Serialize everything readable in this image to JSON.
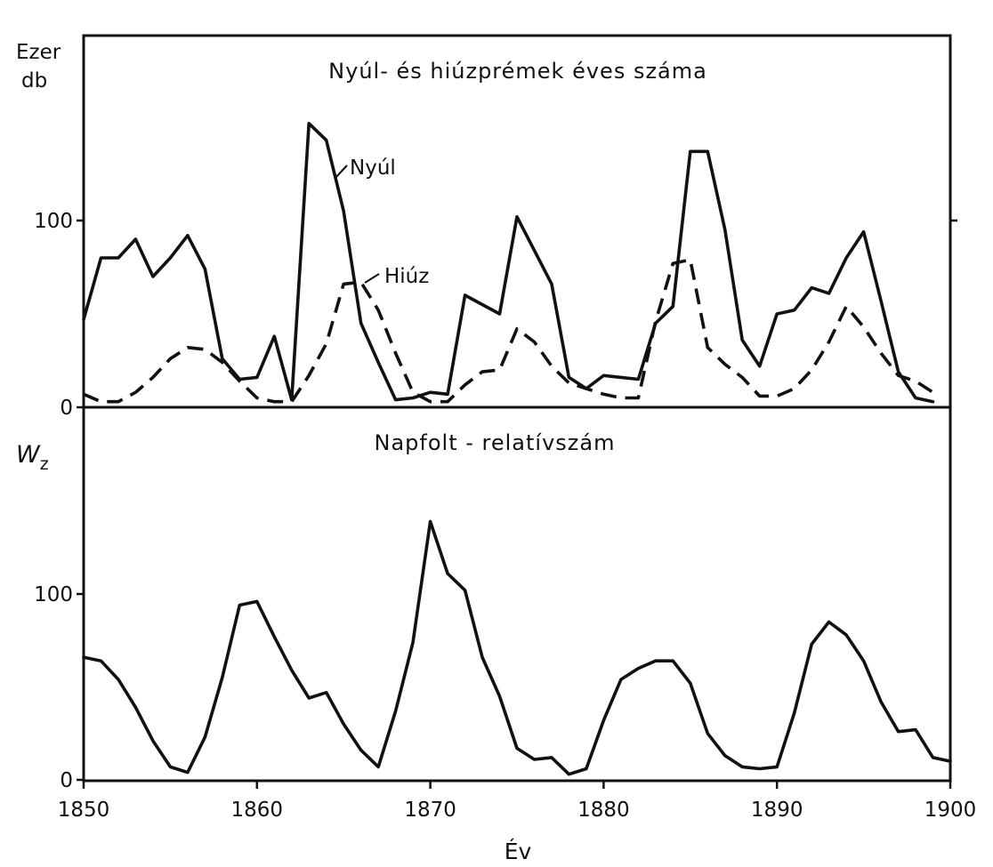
{
  "chart_data": [
    {
      "type": "line",
      "title": "Nyúl- és hiúzprémek éves száma",
      "ylabel_lines": [
        "Ezer",
        "db"
      ],
      "xlabel": "",
      "xlim": [
        1850,
        1900
      ],
      "ylim": [
        0,
        150
      ],
      "yticks": [
        0,
        100
      ],
      "series": [
        {
          "name": "Nyúl",
          "style": "solid",
          "points": [
            [
              1850,
              47
            ],
            [
              1851,
              80
            ],
            [
              1852,
              80
            ],
            [
              1853,
              90
            ],
            [
              1854,
              70
            ],
            [
              1855,
              80
            ],
            [
              1856,
              92
            ],
            [
              1857,
              74
            ],
            [
              1858,
              26
            ],
            [
              1859,
              15
            ],
            [
              1860,
              16
            ],
            [
              1861,
              38
            ],
            [
              1862,
              4
            ],
            [
              1863,
              152
            ],
            [
              1864,
              143
            ],
            [
              1865,
              105
            ],
            [
              1866,
              45
            ],
            [
              1867,
              24
            ],
            [
              1868,
              4
            ],
            [
              1869,
              5
            ],
            [
              1870,
              8
            ],
            [
              1871,
              7
            ],
            [
              1872,
              60
            ],
            [
              1873,
              55
            ],
            [
              1874,
              50
            ],
            [
              1875,
              102
            ],
            [
              1876,
              84
            ],
            [
              1877,
              66
            ],
            [
              1878,
              16
            ],
            [
              1879,
              10
            ],
            [
              1880,
              17
            ],
            [
              1881,
              16
            ],
            [
              1882,
              15
            ],
            [
              1883,
              45
            ],
            [
              1884,
              54
            ],
            [
              1885,
              137
            ],
            [
              1886,
              137
            ],
            [
              1887,
              95
            ],
            [
              1888,
              36
            ],
            [
              1889,
              22
            ],
            [
              1890,
              50
            ],
            [
              1891,
              52
            ],
            [
              1892,
              64
            ],
            [
              1893,
              61
            ],
            [
              1894,
              80
            ],
            [
              1895,
              94
            ],
            [
              1896,
              57
            ],
            [
              1897,
              19
            ],
            [
              1898,
              5
            ],
            [
              1899,
              3
            ]
          ]
        },
        {
          "name": "Hiúz",
          "style": "dashed",
          "points": [
            [
              1850,
              7
            ],
            [
              1851,
              3
            ],
            [
              1852,
              3
            ],
            [
              1853,
              8
            ],
            [
              1854,
              16
            ],
            [
              1855,
              26
            ],
            [
              1856,
              32
            ],
            [
              1857,
              31
            ],
            [
              1858,
              24
            ],
            [
              1859,
              14
            ],
            [
              1860,
              5
            ],
            [
              1861,
              3
            ],
            [
              1862,
              3
            ],
            [
              1863,
              17
            ],
            [
              1864,
              34
            ],
            [
              1865,
              66
            ],
            [
              1866,
              67
            ],
            [
              1867,
              52
            ],
            [
              1868,
              29
            ],
            [
              1869,
              8
            ],
            [
              1870,
              3
            ],
            [
              1871,
              3
            ],
            [
              1872,
              12
            ],
            [
              1873,
              19
            ],
            [
              1874,
              20
            ],
            [
              1875,
              42
            ],
            [
              1876,
              35
            ],
            [
              1877,
              22
            ],
            [
              1878,
              13
            ],
            [
              1879,
              10
            ],
            [
              1880,
              7
            ],
            [
              1881,
              5
            ],
            [
              1882,
              5
            ],
            [
              1883,
              46
            ],
            [
              1884,
              77
            ],
            [
              1885,
              79
            ],
            [
              1886,
              32
            ],
            [
              1887,
              23
            ],
            [
              1888,
              16
            ],
            [
              1889,
              6
            ],
            [
              1890,
              6
            ],
            [
              1891,
              10
            ],
            [
              1892,
              20
            ],
            [
              1893,
              35
            ],
            [
              1894,
              54
            ],
            [
              1895,
              43
            ],
            [
              1896,
              29
            ],
            [
              1897,
              17
            ],
            [
              1898,
              14
            ],
            [
              1899,
              8
            ]
          ]
        }
      ]
    },
    {
      "type": "line",
      "title": "Napfolt - relatívszám",
      "ylabel_main": "W",
      "ylabel_sub": "z",
      "xlabel": "Év",
      "xlim": [
        1850,
        1900
      ],
      "ylim": [
        0,
        150
      ],
      "yticks": [
        0,
        100
      ],
      "xticks": [
        1850,
        1860,
        1870,
        1880,
        1890,
        1900
      ],
      "series": [
        {
          "name": "",
          "style": "solid",
          "points": [
            [
              1850,
              66
            ],
            [
              1851,
              64
            ],
            [
              1852,
              54
            ],
            [
              1853,
              39
            ],
            [
              1854,
              21
            ],
            [
              1855,
              7
            ],
            [
              1856,
              4
            ],
            [
              1857,
              23
            ],
            [
              1858,
              55
            ],
            [
              1859,
              94
            ],
            [
              1860,
              96
            ],
            [
              1861,
              77
            ],
            [
              1862,
              59
            ],
            [
              1863,
              44
            ],
            [
              1864,
              47
            ],
            [
              1865,
              30
            ],
            [
              1866,
              16
            ],
            [
              1867,
              7
            ],
            [
              1868,
              37
            ],
            [
              1869,
              74
            ],
            [
              1870,
              139
            ],
            [
              1871,
              111
            ],
            [
              1872,
              102
            ],
            [
              1873,
              66
            ],
            [
              1874,
              45
            ],
            [
              1875,
              17
            ],
            [
              1876,
              11
            ],
            [
              1877,
              12
            ],
            [
              1878,
              3
            ],
            [
              1879,
              6
            ],
            [
              1880,
              32
            ],
            [
              1881,
              54
            ],
            [
              1882,
              60
            ],
            [
              1883,
              64
            ],
            [
              1884,
              64
            ],
            [
              1885,
              52
            ],
            [
              1886,
              25
            ],
            [
              1887,
              13
            ],
            [
              1888,
              7
            ],
            [
              1889,
              6
            ],
            [
              1890,
              7
            ],
            [
              1891,
              36
            ],
            [
              1892,
              73
            ],
            [
              1893,
              85
            ],
            [
              1894,
              78
            ],
            [
              1895,
              64
            ],
            [
              1896,
              42
            ],
            [
              1897,
              26
            ],
            [
              1898,
              27
            ],
            [
              1899,
              12
            ],
            [
              1900,
              10
            ]
          ]
        }
      ]
    }
  ]
}
